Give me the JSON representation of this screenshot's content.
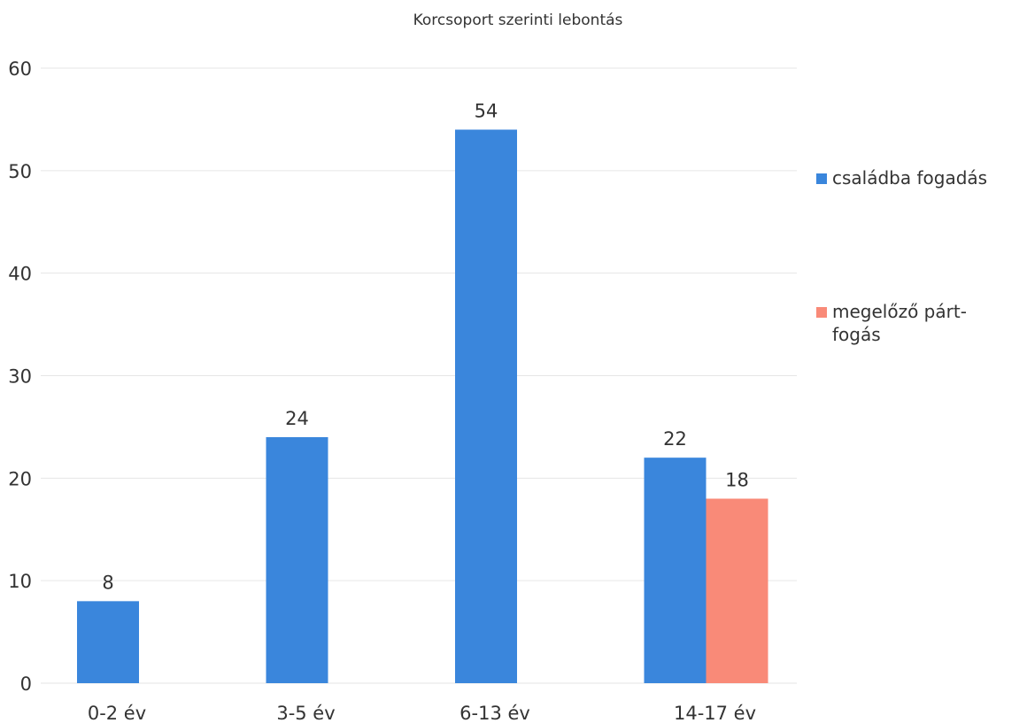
{
  "chart_data": {
    "type": "bar",
    "title": "Korcsoport szerinti lebontás",
    "xlabel": "",
    "ylabel": "",
    "categories": [
      "0-2 év",
      "3-5 év",
      "6-13 év",
      "14-17 év"
    ],
    "series": [
      {
        "name": "családba fogadás",
        "color": "#3a86dc",
        "values": [
          8,
          24,
          54,
          22
        ]
      },
      {
        "name": "megelőző pártfogás",
        "legend_lines": [
          "megelőző párt-",
          "fogás"
        ],
        "color": "#f98a78",
        "values": [
          null,
          null,
          null,
          18
        ]
      }
    ],
    "ylim": [
      0,
      60
    ],
    "yticks": [
      "0",
      "10",
      "20",
      "30",
      "40",
      "50",
      "60"
    ],
    "grid": true,
    "legend_position": "right"
  }
}
